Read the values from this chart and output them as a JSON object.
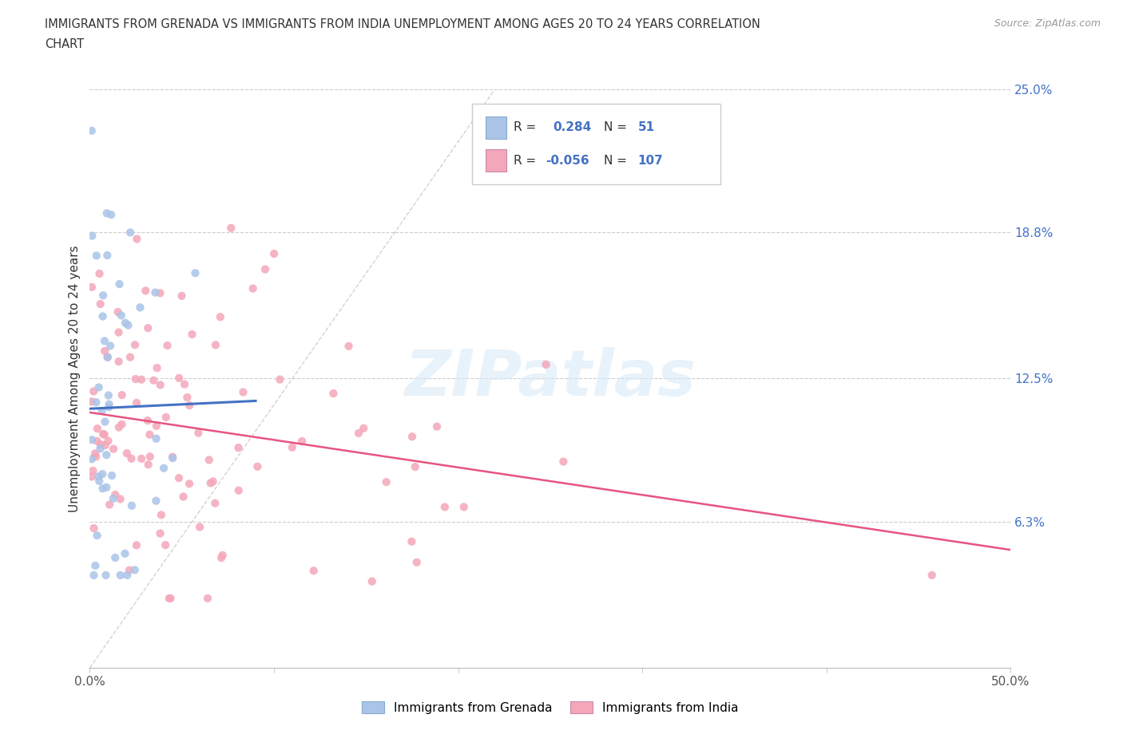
{
  "title_line1": "IMMIGRANTS FROM GRENADA VS IMMIGRANTS FROM INDIA UNEMPLOYMENT AMONG AGES 20 TO 24 YEARS CORRELATION",
  "title_line2": "CHART",
  "source": "Source: ZipAtlas.com",
  "ylabel": "Unemployment Among Ages 20 to 24 years",
  "xlim": [
    0,
    0.5
  ],
  "ylim": [
    0,
    0.25
  ],
  "xtick_vals": [
    0.0,
    0.1,
    0.2,
    0.3,
    0.4,
    0.5
  ],
  "xtick_labels": [
    "0.0%",
    "",
    "",
    "",
    "",
    "50.0%"
  ],
  "ytick_vals_right": [
    0.063,
    0.125,
    0.188,
    0.25
  ],
  "ytick_labels_right": [
    "6.3%",
    "12.5%",
    "18.8%",
    "25.0%"
  ],
  "grid_color": "#cccccc",
  "background_color": "#ffffff",
  "grenada_color": "#aac4e8",
  "india_color": "#f4a7b9",
  "grenada_line_color": "#4472c4",
  "india_line_color": "#e75480",
  "ref_line_color": "#c0c0c0",
  "grenada_R": 0.284,
  "grenada_N": 51,
  "india_R": -0.056,
  "india_N": 107,
  "legend_label_grenada": "Immigrants from Grenada",
  "legend_label_india": "Immigrants from India",
  "watermark_text": "ZIPatlas",
  "watermark_color": "#daeaf7",
  "text_color": "#333333",
  "right_axis_color": "#4472c4",
  "source_color": "#999999"
}
